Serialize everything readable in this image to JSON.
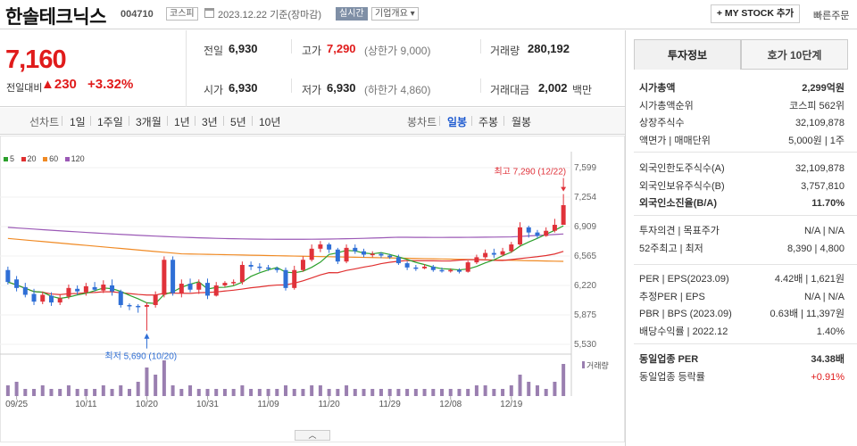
{
  "header": {
    "name": "한솔테크닉스",
    "code": "004710",
    "market": "코스피",
    "date": "2023.12.22 기준(장마감)",
    "live_label": "실시간",
    "company_label": "기업개요 ▾",
    "mystock_label": "+ MY STOCK 추가",
    "quick_order": "빠른주문"
  },
  "price": {
    "current": "7,160",
    "compare_label": "전일대비",
    "change": "▲230",
    "change_pct": "+3.32%"
  },
  "stats": {
    "prev_label": "전일",
    "prev": "6,930",
    "open_label": "시가",
    "open": "6,930",
    "high_label": "고가",
    "high": "7,290",
    "high_limit": "(상한가 9,000)",
    "low_label": "저가",
    "low": "6,930",
    "low_limit": "(하한가 4,860)",
    "volume_label": "거래량",
    "volume": "280,192",
    "amount_label": "거래대금",
    "amount": "2,002",
    "amount_unit": "백만"
  },
  "periods": {
    "line_label": "선차트",
    "line_items": [
      "1일",
      "1주일",
      "3개월",
      "1년",
      "3년",
      "5년",
      "10년"
    ],
    "candle_label": "봉차트",
    "candle_items": [
      "일봉",
      "주봉",
      "월봉"
    ],
    "candle_selected": "일봉"
  },
  "chart_data": {
    "type": "candlestick",
    "legend": [
      {
        "name": "5",
        "color": "#2ca02c"
      },
      {
        "name": "20",
        "color": "#e03030"
      },
      {
        "name": "60",
        "color": "#f08a24"
      },
      {
        "name": "120",
        "color": "#9b59b6"
      }
    ],
    "y_ticks": [
      "7,599",
      "7,254",
      "6,909",
      "6,565",
      "6,220",
      "5,875",
      "5,530"
    ],
    "ylim": [
      5530,
      7599
    ],
    "x_ticks": [
      "09/25",
      "10/11",
      "10/20",
      "10/31",
      "11/09",
      "11/20",
      "11/29",
      "12/08",
      "12/19"
    ],
    "volume_label": "거래량",
    "high_annotation": "최고 7,290 (12/22)",
    "low_annotation": "최저 5,690 (10/20)",
    "candles": [
      [
        6400,
        6260,
        6440,
        6230
      ],
      [
        6290,
        6190,
        6330,
        6150
      ],
      [
        6200,
        6110,
        6250,
        6080
      ],
      [
        6120,
        6030,
        6180,
        5990
      ],
      [
        6030,
        6110,
        6150,
        6000
      ],
      [
        6100,
        6020,
        6140,
        5980
      ],
      [
        6020,
        6070,
        6110,
        5990
      ],
      [
        6090,
        6190,
        6230,
        6060
      ],
      [
        6180,
        6150,
        6220,
        6110
      ],
      [
        6140,
        6210,
        6250,
        6100
      ],
      [
        6200,
        6170,
        6260,
        6150
      ],
      [
        6160,
        6230,
        6280,
        6130
      ],
      [
        6220,
        6150,
        6290,
        6100
      ],
      [
        6150,
        5990,
        6170,
        5960
      ],
      [
        5990,
        5980,
        6010,
        5930
      ],
      [
        5980,
        5970,
        6000,
        5900
      ],
      [
        5970,
        5990,
        6020,
        5690
      ],
      [
        5990,
        6110,
        6150,
        5960
      ],
      [
        6110,
        6520,
        6560,
        6080
      ],
      [
        6520,
        6130,
        6560,
        6100
      ],
      [
        6130,
        6240,
        6290,
        6080
      ],
      [
        6240,
        6170,
        6300,
        6140
      ],
      [
        6170,
        6250,
        6290,
        6120
      ],
      [
        6250,
        6100,
        6300,
        6060
      ],
      [
        6100,
        6220,
        6260,
        6090
      ],
      [
        6220,
        6250,
        6270,
        6200
      ],
      [
        6250,
        6260,
        6290,
        6220
      ],
      [
        6260,
        6460,
        6500,
        6230
      ],
      [
        6460,
        6440,
        6500,
        6400
      ],
      [
        6440,
        6430,
        6480,
        6380
      ],
      [
        6430,
        6420,
        6460,
        6390
      ],
      [
        6420,
        6400,
        6440,
        6370
      ],
      [
        6400,
        6190,
        6430,
        6160
      ],
      [
        6190,
        6400,
        6450,
        6170
      ],
      [
        6400,
        6520,
        6560,
        6380
      ],
      [
        6520,
        6650,
        6700,
        6500
      ],
      [
        6650,
        6700,
        6740,
        6610
      ],
      [
        6700,
        6640,
        6720,
        6600
      ],
      [
        6640,
        6500,
        6660,
        6470
      ],
      [
        6500,
        6660,
        6700,
        6480
      ],
      [
        6660,
        6620,
        6700,
        6590
      ],
      [
        6620,
        6580,
        6650,
        6550
      ],
      [
        6580,
        6590,
        6620,
        6550
      ],
      [
        6590,
        6570,
        6610,
        6540
      ],
      [
        6570,
        6550,
        6590,
        6530
      ],
      [
        6550,
        6480,
        6580,
        6460
      ],
      [
        6480,
        6430,
        6500,
        6400
      ],
      [
        6430,
        6420,
        6460,
        6390
      ],
      [
        6420,
        6440,
        6470,
        6410
      ],
      [
        6440,
        6400,
        6460,
        6380
      ],
      [
        6400,
        6390,
        6430,
        6370
      ],
      [
        6390,
        6400,
        6420,
        6370
      ],
      [
        6400,
        6380,
        6420,
        6360
      ],
      [
        6380,
        6490,
        6510,
        6370
      ],
      [
        6490,
        6550,
        6580,
        6470
      ],
      [
        6550,
        6600,
        6640,
        6530
      ],
      [
        6600,
        6580,
        6650,
        6540
      ],
      [
        6580,
        6620,
        6660,
        6560
      ],
      [
        6620,
        6700,
        6730,
        6600
      ],
      [
        6700,
        6900,
        6960,
        6680
      ],
      [
        6900,
        6840,
        6920,
        6780
      ],
      [
        6840,
        6800,
        6870,
        6770
      ],
      [
        6800,
        6860,
        6900,
        6790
      ],
      [
        6860,
        6930,
        7000,
        6840
      ],
      [
        6930,
        7160,
        7290,
        6930
      ]
    ],
    "volumes": [
      3,
      4,
      2,
      2,
      3,
      2,
      2,
      3,
      2,
      2,
      2,
      3,
      2,
      3,
      2,
      4,
      8,
      6,
      10,
      3,
      2,
      3,
      2,
      2,
      2,
      2,
      2,
      3,
      2,
      2,
      2,
      2,
      3,
      2,
      2,
      3,
      3,
      2,
      2,
      3,
      2,
      2,
      2,
      2,
      2,
      2,
      2,
      2,
      2,
      2,
      2,
      2,
      2,
      2,
      3,
      3,
      2,
      2,
      3,
      6,
      4,
      3,
      2,
      4,
      9
    ]
  },
  "right_panel": {
    "tabs": [
      "투자정보",
      "호가 10단계"
    ],
    "rows1": [
      {
        "label": "시가총액",
        "value": "2,299억원",
        "bold": true
      },
      {
        "label": "시가총액순위",
        "value": "코스피 562위"
      },
      {
        "label": "상장주식수",
        "value": "32,109,878"
      },
      {
        "label": "액면가 | 매매단위",
        "value": "5,000원 | 1주"
      }
    ],
    "rows2": [
      {
        "label": "외국인한도주식수(A)",
        "value": "32,109,878"
      },
      {
        "label": "외국인보유주식수(B)",
        "value": "3,757,810"
      },
      {
        "label": "외국인소진율(B/A)",
        "value": "11.70%",
        "bold": true
      }
    ],
    "rows3": [
      {
        "label": "투자의견 | 목표주가",
        "value": "N/A | N/A"
      },
      {
        "label": "52주최고 | 최저",
        "value": "8,390 | 4,800"
      }
    ],
    "rows4": [
      {
        "label": "PER | EPS(2023.09)",
        "value": "4.42배 | 1,621원"
      },
      {
        "label": "추정PER | EPS",
        "value": "N/A | N/A"
      },
      {
        "label": "PBR | BPS (2023.09)",
        "value": "0.63배 | 11,397원"
      },
      {
        "label": "배당수익률 | 2022.12",
        "value": "1.40%"
      }
    ],
    "rows5": [
      {
        "label": "동일업종 PER",
        "value": "34.38배",
        "bold": true
      },
      {
        "label": "동일업종 등락률",
        "value": "+0.91%",
        "red": true
      }
    ]
  }
}
